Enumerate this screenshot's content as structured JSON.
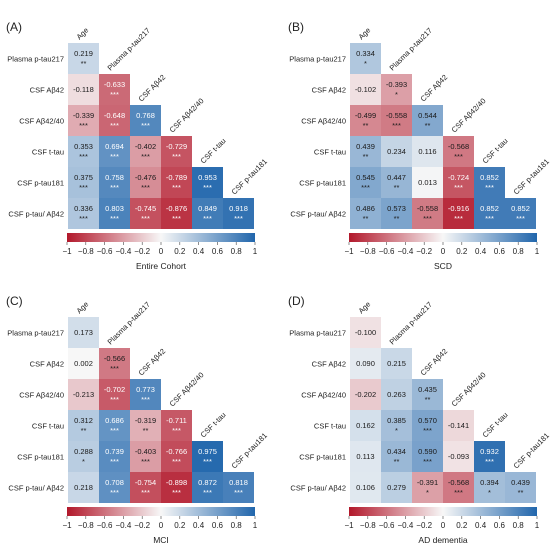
{
  "colors": {
    "negative": "#b2182b",
    "mid": "#f7f7f7",
    "positive": "#2166ac"
  },
  "rows": [
    "Plasma p-tau217",
    "CSF Aβ42",
    "CSF Aβ42/40",
    "CSF t-tau",
    "CSF p-tau181",
    "CSF p-tau/ Aβ42"
  ],
  "cols": [
    "Age",
    "Plasma p-tau217",
    "CSF Aβ42",
    "CSF Aβ42/40",
    "CSF t-tau",
    "CSF p-tau181"
  ],
  "colorbar_ticks": [
    "−1",
    "−0.8",
    "−0.6",
    "−0.4",
    "−0.2",
    "0",
    "0.2",
    "0.4",
    "0.6",
    "0.8",
    "1"
  ],
  "chart_data": [
    {
      "type": "heatmap",
      "panel_label": "(A)",
      "xlabel": "Entire Cohort",
      "color_range": [
        -1,
        1
      ],
      "cells": [
        [
          {
            "v": 0.219,
            "t": "0.219",
            "s": "**"
          }
        ],
        [
          {
            "v": -0.118,
            "t": "-0.118",
            "s": ""
          },
          {
            "v": -0.633,
            "t": "-0.633",
            "s": "***"
          }
        ],
        [
          {
            "v": -0.339,
            "t": "-0.339",
            "s": "***"
          },
          {
            "v": -0.648,
            "t": "-0.648",
            "s": "***"
          },
          {
            "v": 0.768,
            "t": "0.768",
            "s": "***"
          }
        ],
        [
          {
            "v": 0.353,
            "t": "0.353",
            "s": "***"
          },
          {
            "v": 0.694,
            "t": "0.694",
            "s": "***"
          },
          {
            "v": -0.402,
            "t": "-0.402",
            "s": "***"
          },
          {
            "v": -0.729,
            "t": "-0.729",
            "s": "***"
          }
        ],
        [
          {
            "v": 0.375,
            "t": "0.375",
            "s": "***"
          },
          {
            "v": 0.758,
            "t": "0.758",
            "s": "***"
          },
          {
            "v": -0.476,
            "t": "-0.476",
            "s": "***"
          },
          {
            "v": -0.789,
            "t": "-0.789",
            "s": "***"
          },
          {
            "v": 0.953,
            "t": "0.953",
            "s": "***"
          }
        ],
        [
          {
            "v": 0.336,
            "t": "0.336",
            "s": "***"
          },
          {
            "v": 0.803,
            "t": "0.803",
            "s": "***"
          },
          {
            "v": -0.745,
            "t": "-0.745",
            "s": "***"
          },
          {
            "v": -0.876,
            "t": "-0.876",
            "s": "***"
          },
          {
            "v": 0.849,
            "t": "0.849",
            "s": "***"
          },
          {
            "v": 0.918,
            "t": "0.918",
            "s": "***"
          }
        ]
      ]
    },
    {
      "type": "heatmap",
      "panel_label": "(B)",
      "xlabel": "SCD",
      "color_range": [
        -1,
        1
      ],
      "cells": [
        [
          {
            "v": 0.334,
            "t": "0.334",
            "s": "*"
          }
        ],
        [
          {
            "v": -0.102,
            "t": "-0.102",
            "s": ""
          },
          {
            "v": -0.393,
            "t": "-0.393",
            "s": "*"
          }
        ],
        [
          {
            "v": -0.499,
            "t": "-0.499",
            "s": "**"
          },
          {
            "v": -0.558,
            "t": "-0.558",
            "s": "***"
          },
          {
            "v": 0.544,
            "t": "0.544",
            "s": "**"
          }
        ],
        [
          {
            "v": 0.439,
            "t": "0.439",
            "s": "**"
          },
          {
            "v": 0.234,
            "t": "0.234",
            "s": ""
          },
          {
            "v": 0.116,
            "t": "0.116",
            "s": ""
          },
          {
            "v": -0.568,
            "t": "-0.568",
            "s": "***"
          }
        ],
        [
          {
            "v": 0.545,
            "t": "0.545",
            "s": "***"
          },
          {
            "v": 0.447,
            "t": "0.447",
            "s": "**"
          },
          {
            "v": 0.013,
            "t": "0.013",
            "s": ""
          },
          {
            "v": -0.724,
            "t": "-0.724",
            "s": "***"
          },
          {
            "v": 0.852,
            "t": "0.852",
            "s": "***"
          }
        ],
        [
          {
            "v": 0.486,
            "t": "0.486",
            "s": "**"
          },
          {
            "v": 0.573,
            "t": "0.573",
            "s": "**"
          },
          {
            "v": -0.558,
            "t": "-0.558",
            "s": "***"
          },
          {
            "v": -0.916,
            "t": "-0.916",
            "s": "***"
          },
          {
            "v": 0.852,
            "t": "0.852",
            "s": "***"
          },
          {
            "v": 0.852,
            "t": "0.852",
            "s": "***"
          }
        ]
      ]
    },
    {
      "type": "heatmap",
      "panel_label": "(C)",
      "xlabel": "MCI",
      "color_range": [
        -1,
        1
      ],
      "cells": [
        [
          {
            "v": 0.173,
            "t": "0.173",
            "s": ""
          }
        ],
        [
          {
            "v": 0.002,
            "t": "0.002",
            "s": ""
          },
          {
            "v": -0.566,
            "t": "-0.566",
            "s": "***"
          }
        ],
        [
          {
            "v": -0.213,
            "t": "-0.213",
            "s": ""
          },
          {
            "v": -0.702,
            "t": "-0.702",
            "s": "***"
          },
          {
            "v": 0.773,
            "t": "0.773",
            "s": "***"
          }
        ],
        [
          {
            "v": 0.312,
            "t": "0.312",
            "s": "**"
          },
          {
            "v": 0.686,
            "t": "0.686",
            "s": "***"
          },
          {
            "v": -0.319,
            "t": "-0.319",
            "s": "**"
          },
          {
            "v": -0.711,
            "t": "-0.711",
            "s": "***"
          }
        ],
        [
          {
            "v": 0.288,
            "t": "0.288",
            "s": "*"
          },
          {
            "v": 0.739,
            "t": "0.739",
            "s": "***"
          },
          {
            "v": -0.403,
            "t": "-0.403",
            "s": "***"
          },
          {
            "v": -0.766,
            "t": "-0.766",
            "s": "***"
          },
          {
            "v": 0.975,
            "t": "0.975",
            "s": "***"
          }
        ],
        [
          {
            "v": 0.218,
            "t": "0.218",
            "s": ""
          },
          {
            "v": 0.708,
            "t": "0.708",
            "s": "***"
          },
          {
            "v": -0.754,
            "t": "-0.754",
            "s": "***"
          },
          {
            "v": -0.898,
            "t": "-0.898",
            "s": "***"
          },
          {
            "v": 0.872,
            "t": "0.872",
            "s": "***"
          },
          {
            "v": 0.818,
            "t": "0.818",
            "s": "***"
          }
        ]
      ]
    },
    {
      "type": "heatmap",
      "panel_label": "(D)",
      "xlabel": "AD dementia",
      "color_range": [
        -1,
        1
      ],
      "cells": [
        [
          {
            "v": -0.1,
            "t": "-0.100",
            "s": ""
          }
        ],
        [
          {
            "v": 0.09,
            "t": "0.090",
            "s": ""
          },
          {
            "v": 0.215,
            "t": "0.215",
            "s": ""
          }
        ],
        [
          {
            "v": -0.202,
            "t": "-0.202",
            "s": ""
          },
          {
            "v": 0.263,
            "t": "0.263",
            "s": ""
          },
          {
            "v": 0.435,
            "t": "0.435",
            "s": "**"
          }
        ],
        [
          {
            "v": 0.162,
            "t": "0.162",
            "s": ""
          },
          {
            "v": 0.385,
            "t": "0.385",
            "s": "*"
          },
          {
            "v": 0.57,
            "t": "0.570",
            "s": "***"
          },
          {
            "v": -0.141,
            "t": "-0.141",
            "s": ""
          }
        ],
        [
          {
            "v": 0.113,
            "t": "0.113",
            "s": ""
          },
          {
            "v": 0.434,
            "t": "0.434",
            "s": "**"
          },
          {
            "v": 0.59,
            "t": "0.590",
            "s": "***"
          },
          {
            "v": -0.093,
            "t": "-0.093",
            "s": ""
          },
          {
            "v": 0.932,
            "t": "0.932",
            "s": "***"
          }
        ],
        [
          {
            "v": 0.106,
            "t": "0.106",
            "s": ""
          },
          {
            "v": 0.279,
            "t": "0.279",
            "s": ""
          },
          {
            "v": -0.391,
            "t": "-0.391",
            "s": "*"
          },
          {
            "v": -0.568,
            "t": "-0.568",
            "s": "***"
          },
          {
            "v": 0.394,
            "t": "0.394",
            "s": "*"
          },
          {
            "v": 0.439,
            "t": "0.439",
            "s": "**"
          }
        ]
      ]
    }
  ]
}
